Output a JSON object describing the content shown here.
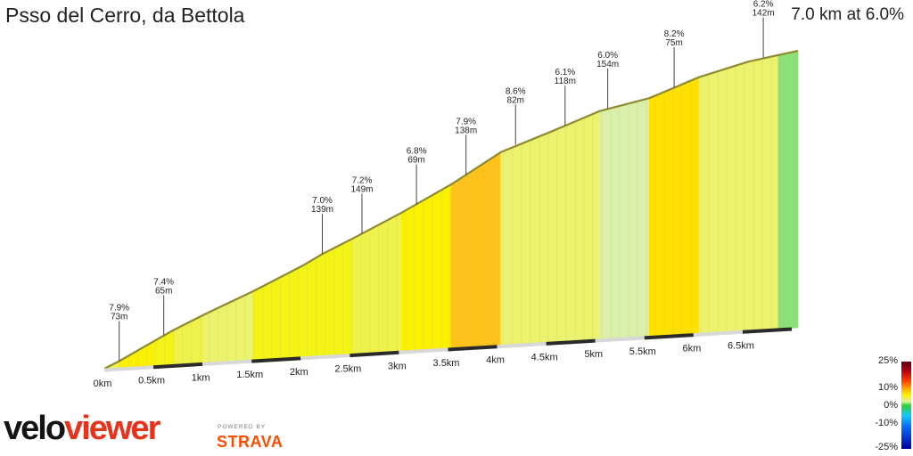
{
  "title": "Psso del Cerro, da Bettola",
  "summary": "7.0 km at 6.0%",
  "chart_data": {
    "type": "area",
    "distance_km": 7.0,
    "average_gradient_pct": 6.0,
    "x_tick_labels": [
      "0km",
      "0.5km",
      "1km",
      "1.5km",
      "2km",
      "2.5km",
      "3km",
      "3.5km",
      "4km",
      "4.5km",
      "5km",
      "5.5km",
      "6km",
      "6.5km"
    ],
    "x_tick_values": [
      0,
      0.5,
      1,
      1.5,
      2,
      2.5,
      3,
      3.5,
      4,
      4.5,
      5,
      5.5,
      6,
      6.5
    ],
    "xlim": [
      0,
      7.0
    ],
    "ylim": [
      0,
      420
    ],
    "profile": [
      {
        "x": 0.0,
        "y": 0
      },
      {
        "x": 0.15,
        "y": 10
      },
      {
        "x": 0.5,
        "y": 37
      },
      {
        "x": 0.7,
        "y": 52
      },
      {
        "x": 1.0,
        "y": 72
      },
      {
        "x": 1.5,
        "y": 103
      },
      {
        "x": 2.0,
        "y": 137
      },
      {
        "x": 2.2,
        "y": 153
      },
      {
        "x": 2.5,
        "y": 173
      },
      {
        "x": 3.0,
        "y": 208
      },
      {
        "x": 3.5,
        "y": 246
      },
      {
        "x": 4.0,
        "y": 290
      },
      {
        "x": 4.5,
        "y": 316
      },
      {
        "x": 5.0,
        "y": 343
      },
      {
        "x": 5.5,
        "y": 358
      },
      {
        "x": 6.0,
        "y": 385
      },
      {
        "x": 6.5,
        "y": 404
      },
      {
        "x": 7.0,
        "y": 416
      }
    ],
    "gradient_segments": [
      {
        "from": 0.0,
        "to": 0.15,
        "gradient": 6.7
      },
      {
        "from": 0.15,
        "to": 0.5,
        "gradient": 7.9
      },
      {
        "from": 0.5,
        "to": 0.7,
        "gradient": 7.4
      },
      {
        "from": 0.7,
        "to": 1.0,
        "gradient": 6.6
      },
      {
        "from": 1.0,
        "to": 1.5,
        "gradient": 6.3
      },
      {
        "from": 1.5,
        "to": 2.0,
        "gradient": 7.0
      },
      {
        "from": 2.0,
        "to": 2.5,
        "gradient": 7.2
      },
      {
        "from": 2.5,
        "to": 3.0,
        "gradient": 6.8
      },
      {
        "from": 3.0,
        "to": 3.5,
        "gradient": 7.9
      },
      {
        "from": 3.5,
        "to": 4.0,
        "gradient": 8.6
      },
      {
        "from": 4.0,
        "to": 4.5,
        "gradient": 6.1
      },
      {
        "from": 4.5,
        "to": 5.0,
        "gradient": 6.0
      },
      {
        "from": 5.0,
        "to": 5.5,
        "gradient": 3.6
      },
      {
        "from": 5.5,
        "to": 6.0,
        "gradient": 8.2
      },
      {
        "from": 6.0,
        "to": 6.8,
        "gradient": 6.2
      },
      {
        "from": 6.8,
        "to": 7.0,
        "gradient": 2.0
      }
    ],
    "annotations": [
      {
        "x": 0.15,
        "y": 10,
        "gradient": "7.9%",
        "distance": "73m"
      },
      {
        "x": 0.6,
        "y": 45,
        "gradient": "7.4%",
        "distance": "65m"
      },
      {
        "x": 2.2,
        "y": 153,
        "gradient": "7.0%",
        "distance": "139m"
      },
      {
        "x": 2.6,
        "y": 180,
        "gradient": "7.2%",
        "distance": "149m"
      },
      {
        "x": 3.15,
        "y": 219,
        "gradient": "6.8%",
        "distance": "69m"
      },
      {
        "x": 3.65,
        "y": 259,
        "gradient": "7.9%",
        "distance": "138m"
      },
      {
        "x": 4.15,
        "y": 300,
        "gradient": "8.6%",
        "distance": "82m"
      },
      {
        "x": 4.65,
        "y": 324,
        "gradient": "6.1%",
        "distance": "118m"
      },
      {
        "x": 5.08,
        "y": 346,
        "gradient": "6.0%",
        "distance": "154m"
      },
      {
        "x": 5.75,
        "y": 372,
        "gradient": "8.2%",
        "distance": "75m"
      },
      {
        "x": 6.65,
        "y": 409,
        "gradient": "6.2%",
        "distance": "142m"
      }
    ],
    "color_scale": {
      "labels": [
        "25%",
        "10%",
        "0%",
        "-10%",
        "-25%"
      ]
    }
  },
  "logo": {
    "velo": "velo",
    "viewer": "viewer"
  },
  "powered_by": "POWERED BY",
  "strava": "STRAVA"
}
